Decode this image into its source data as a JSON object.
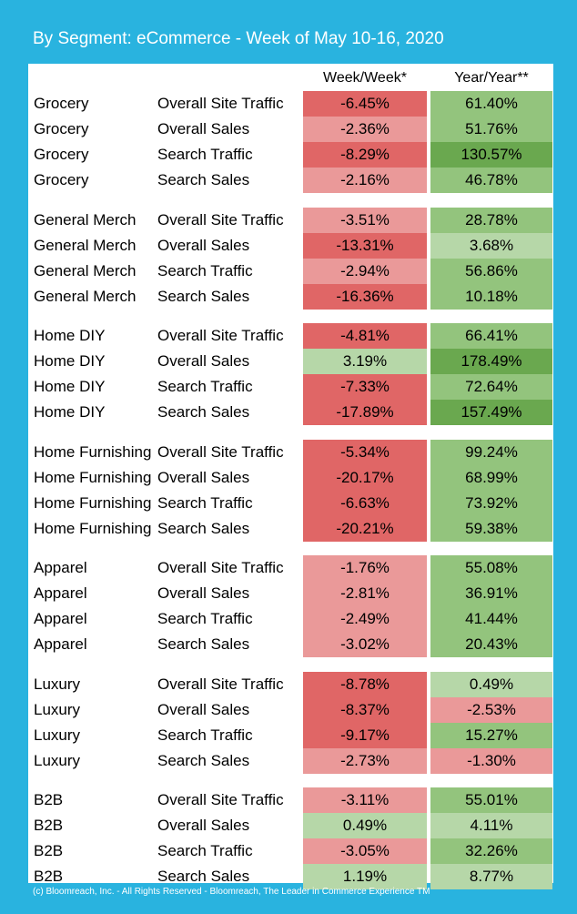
{
  "title": "By Segment: eCommerce - Week of May 10-16, 2020",
  "footer": "(c) Bloomreach, Inc. - All Rights Reserved - Bloomreach, The Leader in Commerce Experience TM",
  "colors": {
    "frame": "#29b3df",
    "neg_strong": "#e06666",
    "neg_light": "#ea9999",
    "pos_light": "#b6d7a8",
    "pos_mid": "#93c47d",
    "pos_strong": "#6aa84f"
  },
  "chart_data": {
    "type": "table",
    "title": "By Segment: eCommerce - Week of May 10-16, 2020",
    "columns": [
      "",
      "",
      "Week/Week*",
      "Year/Year**"
    ],
    "groups": [
      {
        "segment": "Grocery",
        "rows": [
          {
            "metric": "Overall Site Traffic",
            "wow": "-6.45%",
            "yoy": "61.40%",
            "wow_v": -6.45,
            "yoy_v": 61.4
          },
          {
            "metric": "Overall Sales",
            "wow": "-2.36%",
            "yoy": "51.76%",
            "wow_v": -2.36,
            "yoy_v": 51.76
          },
          {
            "metric": "Search Traffic",
            "wow": "-8.29%",
            "yoy": "130.57%",
            "wow_v": -8.29,
            "yoy_v": 130.57
          },
          {
            "metric": "Search Sales",
            "wow": "-2.16%",
            "yoy": "46.78%",
            "wow_v": -2.16,
            "yoy_v": 46.78
          }
        ]
      },
      {
        "segment": "General Merch",
        "rows": [
          {
            "metric": "Overall Site Traffic",
            "wow": "-3.51%",
            "yoy": "28.78%",
            "wow_v": -3.51,
            "yoy_v": 28.78
          },
          {
            "metric": "Overall Sales",
            "wow": "-13.31%",
            "yoy": "3.68%",
            "wow_v": -13.31,
            "yoy_v": 3.68
          },
          {
            "metric": "Search Traffic",
            "wow": "-2.94%",
            "yoy": "56.86%",
            "wow_v": -2.94,
            "yoy_v": 56.86
          },
          {
            "metric": "Search Sales",
            "wow": "-16.36%",
            "yoy": "10.18%",
            "wow_v": -16.36,
            "yoy_v": 10.18
          }
        ]
      },
      {
        "segment": "Home DIY",
        "rows": [
          {
            "metric": "Overall Site Traffic",
            "wow": "-4.81%",
            "yoy": "66.41%",
            "wow_v": -4.81,
            "yoy_v": 66.41
          },
          {
            "metric": "Overall Sales",
            "wow": "3.19%",
            "yoy": "178.49%",
            "wow_v": 3.19,
            "yoy_v": 178.49
          },
          {
            "metric": "Search Traffic",
            "wow": "-7.33%",
            "yoy": "72.64%",
            "wow_v": -7.33,
            "yoy_v": 72.64
          },
          {
            "metric": "Search Sales",
            "wow": "-17.89%",
            "yoy": "157.49%",
            "wow_v": -17.89,
            "yoy_v": 157.49
          }
        ]
      },
      {
        "segment": "Home Furnishing",
        "rows": [
          {
            "metric": "Overall Site Traffic",
            "wow": "-5.34%",
            "yoy": "99.24%",
            "wow_v": -5.34,
            "yoy_v": 99.24
          },
          {
            "metric": "Overall Sales",
            "wow": "-20.17%",
            "yoy": "68.99%",
            "wow_v": -20.17,
            "yoy_v": 68.99
          },
          {
            "metric": "Search Traffic",
            "wow": "-6.63%",
            "yoy": "73.92%",
            "wow_v": -6.63,
            "yoy_v": 73.92
          },
          {
            "metric": "Search Sales",
            "wow": "-20.21%",
            "yoy": "59.38%",
            "wow_v": -20.21,
            "yoy_v": 59.38
          }
        ]
      },
      {
        "segment": "Apparel",
        "rows": [
          {
            "metric": "Overall Site Traffic",
            "wow": "-1.76%",
            "yoy": "55.08%",
            "wow_v": -1.76,
            "yoy_v": 55.08
          },
          {
            "metric": "Overall Sales",
            "wow": "-2.81%",
            "yoy": "36.91%",
            "wow_v": -2.81,
            "yoy_v": 36.91
          },
          {
            "metric": "Search Traffic",
            "wow": "-2.49%",
            "yoy": "41.44%",
            "wow_v": -2.49,
            "yoy_v": 41.44
          },
          {
            "metric": "Search Sales",
            "wow": "-3.02%",
            "yoy": "20.43%",
            "wow_v": -3.02,
            "yoy_v": 20.43
          }
        ]
      },
      {
        "segment": "Luxury",
        "rows": [
          {
            "metric": "Overall Site Traffic",
            "wow": "-8.78%",
            "yoy": "0.49%",
            "wow_v": -8.78,
            "yoy_v": 0.49
          },
          {
            "metric": "Overall Sales",
            "wow": "-8.37%",
            "yoy": "-2.53%",
            "wow_v": -8.37,
            "yoy_v": -2.53
          },
          {
            "metric": "Search Traffic",
            "wow": "-9.17%",
            "yoy": "15.27%",
            "wow_v": -9.17,
            "yoy_v": 15.27
          },
          {
            "metric": "Search Sales",
            "wow": "-2.73%",
            "yoy": "-1.30%",
            "wow_v": -2.73,
            "yoy_v": -1.3
          }
        ]
      },
      {
        "segment": "B2B",
        "rows": [
          {
            "metric": "Overall Site Traffic",
            "wow": "-3.11%",
            "yoy": "55.01%",
            "wow_v": -3.11,
            "yoy_v": 55.01
          },
          {
            "metric": "Overall Sales",
            "wow": "0.49%",
            "yoy": "4.11%",
            "wow_v": 0.49,
            "yoy_v": 4.11
          },
          {
            "metric": "Search Traffic",
            "wow": "-3.05%",
            "yoy": "32.26%",
            "wow_v": -3.05,
            "yoy_v": 32.26
          },
          {
            "metric": "Search Sales",
            "wow": "1.19%",
            "yoy": "8.77%",
            "wow_v": 1.19,
            "yoy_v": 8.77
          }
        ]
      }
    ]
  }
}
